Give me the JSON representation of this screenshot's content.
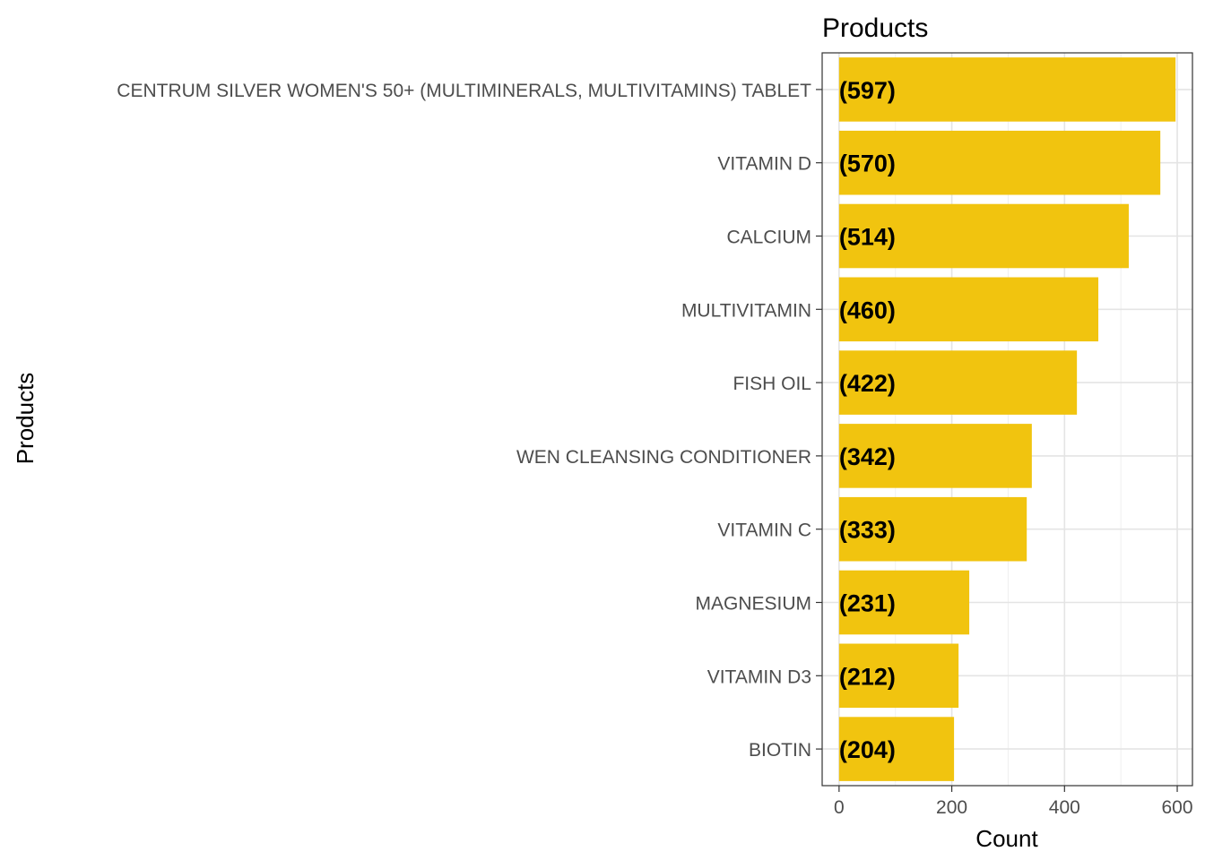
{
  "chart_data": {
    "type": "bar",
    "orientation": "horizontal",
    "title": "Products",
    "xlabel": "Count",
    "ylabel": "Products",
    "categories": [
      "CENTRUM SILVER WOMEN'S 50+ (MULTIMINERALS, MULTIVITAMINS) TABLET",
      "VITAMIN D",
      "CALCIUM",
      "MULTIVITAMIN",
      "FISH OIL",
      "WEN CLEANSING CONDITIONER",
      "VITAMIN C",
      "MAGNESIUM",
      "VITAMIN D3",
      "BIOTIN"
    ],
    "values": [
      597,
      570,
      514,
      460,
      422,
      342,
      333,
      231,
      212,
      204
    ],
    "data_labels": [
      "(597)",
      "(570)",
      "(514)",
      "(460)",
      "(422)",
      "(342)",
      "(333)",
      "(231)",
      "(212)",
      "(204)"
    ],
    "xticks": [
      0,
      200,
      400,
      600
    ],
    "xtick_labels": [
      "0",
      "200",
      "400",
      "600"
    ],
    "xlim": [
      -30,
      627
    ],
    "grid": true,
    "legend": "none",
    "bar_color": "#F1C40F"
  }
}
